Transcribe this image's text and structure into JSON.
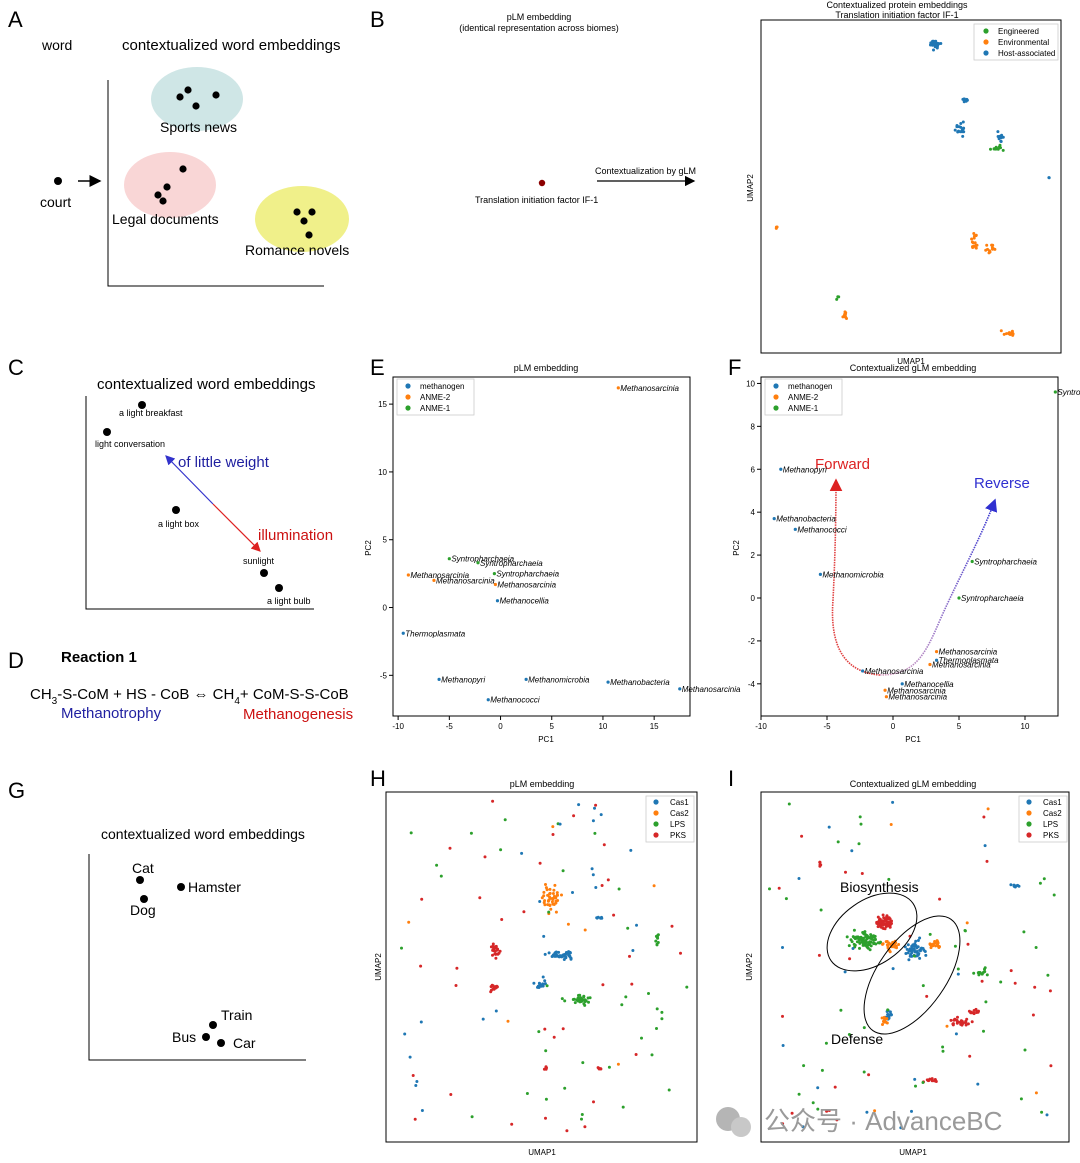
{
  "colors": {
    "blue": "#1f77b4",
    "orange": "#ff7f0e",
    "green": "#2ca02c",
    "red": "#d62728",
    "darkred": "#8b0000",
    "teal": "#cfe6e6",
    "pink": "#f9d6d6",
    "yellow": "#f0f08a",
    "navy": "#1f1fa0",
    "crimson": "#cc1111"
  },
  "panel_labels": {
    "a": "A",
    "b": "B",
    "c": "C",
    "d": "D",
    "e": "E",
    "f": "F",
    "g": "G",
    "h": "H",
    "i": "I"
  },
  "panelA": {
    "word_header": "word",
    "cwe_header": "contextualized word embeddings",
    "court": "court",
    "clusters": [
      "Sports news",
      "Legal documents",
      "Romance novels"
    ]
  },
  "panelB": {
    "title_line1": "pLM embedding",
    "title_line2": "(identical representation across biomes)",
    "point_label": "Translation initiation factor IF-1",
    "arrow_label": "Contextualization by gLM",
    "umap_title_line1": "Contextualized protein embeddings",
    "umap_title_line2": "Translation initiation factor IF-1",
    "ylabel": "UMAP2",
    "xlabel": "UMAP1",
    "legend": [
      "Engineered",
      "Environmental",
      "Host-associated"
    ]
  },
  "panelC": {
    "title": "contextualized word embeddings",
    "points": [
      "a light breakfast",
      "light conversation",
      "a light box",
      "sunlight",
      "a light bulb"
    ],
    "arrow_blue": "of little weight",
    "arrow_red": "illumination"
  },
  "panelD": {
    "title": "Reaction 1",
    "eq_part1": "CH",
    "eq_sub1": "3",
    "eq_part2": "-S-CoM + HS - CoB ⇔ CH",
    "eq_sub2": "4",
    "eq_part3": "+ CoM-S-S-CoB",
    "left_label": "Methanotrophy",
    "right_label": "Methanogenesis"
  },
  "panelE": {
    "title": "pLM embedding",
    "xlabel": "PC1",
    "ylabel": "PC2",
    "legend": [
      "methanogen",
      "ANME-2",
      "ANME-1"
    ]
  },
  "panelF": {
    "title": "Contextualized gLM embedding",
    "xlabel": "PC1",
    "ylabel": "PC2",
    "legend": [
      "methanogen",
      "ANME-2",
      "ANME-1"
    ],
    "forward": "Forward",
    "reverse": "Reverse"
  },
  "panelG": {
    "title": "contextualized word embeddings",
    "words": [
      "Cat",
      "Hamster",
      "Dog",
      "Train",
      "Bus",
      "Car"
    ]
  },
  "panelH": {
    "title": "pLM embedding",
    "xlabel": "UMAP1",
    "ylabel": "UMAP2",
    "legend": [
      "Cas1",
      "Cas2",
      "LPS",
      "PKS"
    ]
  },
  "panelI": {
    "title": "Contextualized gLM embedding",
    "xlabel": "UMAP1",
    "ylabel": "UMAP2",
    "legend": [
      "Cas1",
      "Cas2",
      "LPS",
      "PKS"
    ],
    "ellipse1": "Biosynthesis",
    "ellipse2": "Defense"
  },
  "watermark": "公众号 · AdvanceBC",
  "chart_data": [
    {
      "panel": "E",
      "type": "scatter",
      "title": "pLM embedding",
      "xlabel": "PC1",
      "ylabel": "PC2",
      "xlim": [
        -10.5,
        18.5
      ],
      "ylim": [
        -8,
        17
      ],
      "xticks": [
        -10,
        -5,
        0,
        5,
        10,
        15
      ],
      "yticks": [
        -5,
        0,
        5,
        10,
        15
      ],
      "legend": [
        "methanogen",
        "ANME-2",
        "ANME-1"
      ],
      "points": [
        {
          "x": 11.5,
          "y": 16.2,
          "series": "ANME-2",
          "label": "Methanosarcinia"
        },
        {
          "x": -5.0,
          "y": 3.6,
          "series": "ANME-1",
          "label": "Syntropharchaeia"
        },
        {
          "x": -2.2,
          "y": 3.3,
          "series": "ANME-1",
          "label": "Syntropharchaeia"
        },
        {
          "x": -9.0,
          "y": 2.4,
          "series": "ANME-2",
          "label": "Methanosarcinia"
        },
        {
          "x": -6.5,
          "y": 2.0,
          "series": "ANME-2",
          "label": "Methanosarcinia"
        },
        {
          "x": -0.6,
          "y": 2.5,
          "series": "ANME-1",
          "label": "Syntropharchaeia"
        },
        {
          "x": -0.5,
          "y": 1.7,
          "series": "ANME-2",
          "label": "Methanosarcinia"
        },
        {
          "x": -0.3,
          "y": 0.5,
          "series": "methanogen",
          "label": "Methanocellia"
        },
        {
          "x": -9.5,
          "y": -1.9,
          "series": "methanogen",
          "label": "Thermoplasmata"
        },
        {
          "x": -6.0,
          "y": -5.3,
          "series": "methanogen",
          "label": "Methanopyri"
        },
        {
          "x": 2.5,
          "y": -5.3,
          "series": "methanogen",
          "label": "Methanomicrobia"
        },
        {
          "x": 10.5,
          "y": -5.5,
          "series": "methanogen",
          "label": "Methanobacteria"
        },
        {
          "x": -1.2,
          "y": -6.8,
          "series": "methanogen",
          "label": "Methanococci"
        },
        {
          "x": 17.5,
          "y": -6.0,
          "series": "methanogen",
          "label": "Methanosarcinia"
        }
      ]
    },
    {
      "panel": "F",
      "type": "scatter",
      "title": "Contextualized gLM embedding",
      "xlabel": "PC1",
      "ylabel": "PC2",
      "xlim": [
        -10,
        12.5
      ],
      "ylim": [
        -5.5,
        10.3
      ],
      "xticks": [
        -10,
        -5,
        0,
        5,
        10
      ],
      "yticks": [
        -4,
        -2,
        0,
        2,
        4,
        6,
        8,
        10
      ],
      "legend": [
        "methanogen",
        "ANME-2",
        "ANME-1"
      ],
      "annotations": [
        "Forward",
        "Reverse"
      ],
      "points": [
        {
          "x": 12.3,
          "y": 9.6,
          "series": "ANME-1",
          "label": "Syntropharchaeia"
        },
        {
          "x": -8.5,
          "y": 6.0,
          "series": "methanogen",
          "label": "Methanopyri"
        },
        {
          "x": -9.0,
          "y": 3.7,
          "series": "methanogen",
          "label": "Methanobacteria"
        },
        {
          "x": -7.4,
          "y": 3.2,
          "series": "methanogen",
          "label": "Methanococci"
        },
        {
          "x": -5.5,
          "y": 1.1,
          "series": "methanogen",
          "label": "Methanomicrobia"
        },
        {
          "x": 6.0,
          "y": 1.7,
          "series": "ANME-1",
          "label": "Syntropharchaeia"
        },
        {
          "x": 5.0,
          "y": 0.0,
          "series": "ANME-1",
          "label": "Syntropharchaeia"
        },
        {
          "x": -2.3,
          "y": -3.4,
          "series": "methanogen",
          "label": "Methanosarcinia"
        },
        {
          "x": 3.3,
          "y": -2.5,
          "series": "ANME-2",
          "label": "Methanosarcinia"
        },
        {
          "x": 3.3,
          "y": -2.9,
          "series": "methanogen",
          "label": "Thermoplasmata"
        },
        {
          "x": 2.8,
          "y": -3.1,
          "series": "ANME-2",
          "label": "Methanosarcinia"
        },
        {
          "x": 0.7,
          "y": -4.0,
          "series": "methanogen",
          "label": "Methanocellia"
        },
        {
          "x": -0.6,
          "y": -4.3,
          "series": "ANME-2",
          "label": "Methanosarcinia"
        },
        {
          "x": -0.5,
          "y": -4.6,
          "series": "ANME-2",
          "label": "Methanosarcinia"
        }
      ]
    },
    {
      "panel": "B",
      "type": "scatter",
      "title": "Contextualized protein embeddings — Translation initiation factor IF-1",
      "xlabel": "UMAP1",
      "ylabel": "UMAP2",
      "series": [
        "Engineered",
        "Environmental",
        "Host-associated"
      ]
    },
    {
      "panel": "H",
      "type": "scatter",
      "title": "pLM embedding",
      "xlabel": "UMAP1",
      "ylabel": "UMAP2",
      "series": [
        "Cas1",
        "Cas2",
        "LPS",
        "PKS"
      ]
    },
    {
      "panel": "I",
      "type": "scatter",
      "title": "Contextualized gLM embedding",
      "xlabel": "UMAP1",
      "ylabel": "UMAP2",
      "series": [
        "Cas1",
        "Cas2",
        "LPS",
        "PKS"
      ],
      "annotations": [
        "Biosynthesis",
        "Defense"
      ]
    }
  ]
}
